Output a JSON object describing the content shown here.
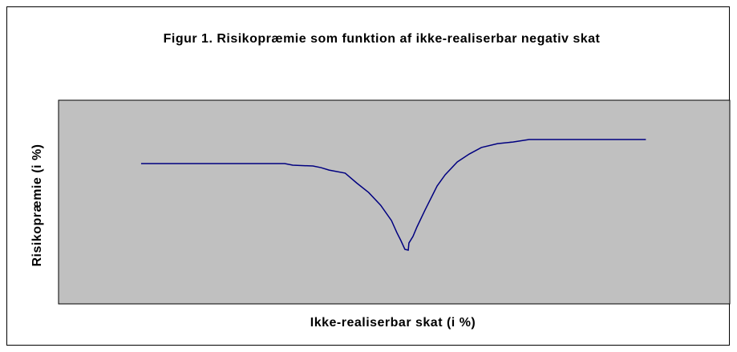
{
  "chart_data": {
    "type": "line",
    "title": "Figur 1. Risikopræmie som funktion af ikke-realiserbar negativ skat",
    "x_label": "Ikke-realiserbar skat (i %)",
    "y_label": "Risikopræmie (i %)",
    "xlim": [
      0,
      100
    ],
    "ylim": [
      0,
      100
    ],
    "grid": false,
    "series": [
      {
        "color": "#000080",
        "x": [
          12.3,
          33.7,
          34.9,
          37.9,
          39.1,
          40.3,
          42.7,
          44.4,
          46.2,
          48.0,
          49.6,
          50.4,
          51.0,
          51.6,
          52.1,
          52.2,
          52.8,
          53.4,
          54.6,
          56.4,
          57.6,
          59.4,
          61.2,
          63.0,
          65.4,
          67.7,
          70.1,
          87.5
        ],
        "values": [
          68.9,
          68.9,
          68.1,
          67.7,
          66.9,
          65.7,
          64.2,
          59.4,
          54.7,
          48.4,
          40.9,
          35.0,
          31.1,
          26.8,
          26.4,
          29.9,
          33.1,
          37.8,
          46.1,
          57.9,
          63.4,
          69.7,
          73.6,
          76.8,
          78.7,
          79.5,
          80.7,
          80.7
        ]
      }
    ]
  }
}
